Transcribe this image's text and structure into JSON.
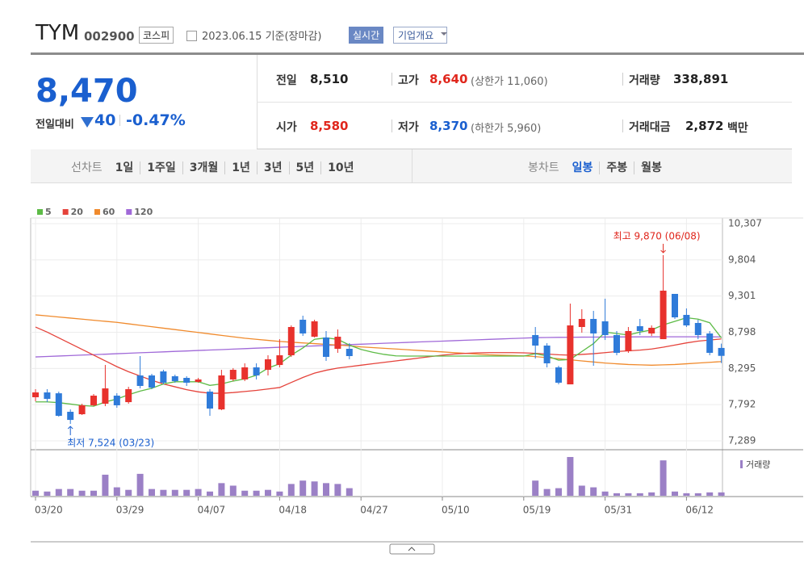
{
  "header": {
    "title": "TYM",
    "code": "002900",
    "market": "코스피",
    "date": "2023.06.15 기준(장마감)",
    "buttons": [
      "실시간",
      "기업개요"
    ]
  },
  "quote": {
    "price": "8,470",
    "change_label": "전일대비",
    "change": "40",
    "change_pct": "-0.47%",
    "info": [
      {
        "label": "전일",
        "value": "8,510"
      },
      {
        "label": "고가",
        "value": "8,640",
        "note": "(상한가 11,060)"
      },
      {
        "label": "거래량",
        "value": "338,891"
      },
      {
        "label": "시가",
        "value": "8,580"
      },
      {
        "label": "저가",
        "value": "8,370",
        "note": "(하한가 5,960)"
      },
      {
        "label": "거래대금",
        "value": "2,872",
        "note": "백만"
      }
    ]
  },
  "tabs": {
    "line": {
      "label": "선차트",
      "items": [
        "1일",
        "1주일",
        "3개월",
        "1년",
        "3년",
        "5년",
        "10년"
      ]
    },
    "candle": {
      "label": "봉차트",
      "items": [
        "일봉",
        "주봉",
        "월봉"
      ]
    }
  },
  "chart_data": {
    "type": "candlestick",
    "categories": [
      "03/20",
      null,
      null,
      null,
      null,
      null,
      null,
      "03/29",
      null,
      null,
      null,
      null,
      null,
      null,
      "04/07",
      null,
      null,
      null,
      null,
      null,
      null,
      "04/18",
      null,
      null,
      null,
      null,
      null,
      null,
      "04/27",
      null,
      null,
      null,
      null,
      null,
      null,
      "05/10",
      null,
      null,
      null,
      null,
      null,
      null,
      "05/19",
      null,
      null,
      null,
      null,
      null,
      null,
      "05/31",
      null,
      null,
      null,
      null,
      null,
      null,
      "06/12",
      null,
      null,
      null
    ],
    "ohlc": {
      "up_color": "#e8322d",
      "down_color": "#2f7bd9",
      "open": [
        7895,
        7962,
        7950,
        7693,
        7659,
        7783,
        7805,
        7917,
        7827,
        8198,
        8198,
        8254,
        8187,
        8164,
        8108,
        7973,
        7726,
        8142,
        8142,
        8310,
        8276,
        8343,
        8478,
        8972,
        8736,
        8725,
        8568,
        8568,
        null,
        null,
        null,
        null,
        null,
        null,
        null,
        null,
        null,
        null,
        null,
        null,
        null,
        null,
        null,
        8759,
        8613,
        8310,
        8074,
        8871,
        8983,
        8950,
        8759,
        8534,
        8882,
        8781,
        8702,
        9331,
        9039,
        8927,
        8781,
        8580
      ],
      "high": [
        8007,
        8007,
        7973,
        7726,
        7805,
        7940,
        8344,
        7951,
        8040,
        8467,
        8220,
        8277,
        8209,
        8187,
        8164,
        8007,
        8276,
        8300,
        8366,
        8366,
        8478,
        8702,
        8893,
        9028,
        8972,
        8815,
        8837,
        8646,
        null,
        null,
        null,
        null,
        null,
        null,
        null,
        null,
        null,
        null,
        null,
        null,
        null,
        null,
        null,
        8871,
        8646,
        8332,
        9196,
        9118,
        9095,
        9264,
        8815,
        8871,
        8983,
        8893,
        9870,
        9331,
        9129,
        8972,
        8815,
        8640
      ],
      "low": [
        7839,
        7828,
        7625,
        7524,
        7648,
        7771,
        7771,
        7749,
        7805,
        8018,
        8007,
        8074,
        8097,
        8052,
        8097,
        7637,
        7715,
        8119,
        8119,
        8142,
        8198,
        8310,
        8455,
        8747,
        8725,
        8400,
        8512,
        8422,
        null,
        null,
        null,
        null,
        null,
        null,
        null,
        null,
        null,
        null,
        null,
        null,
        null,
        null,
        null,
        8433,
        8310,
        8074,
        8074,
        8792,
        8332,
        8691,
        8478,
        8512,
        8759,
        8747,
        8702,
        8983,
        8871,
        8702,
        8478,
        8370
      ],
      "close": [
        7962,
        7872,
        7637,
        7580,
        7783,
        7917,
        8018,
        7783,
        8007,
        8052,
        8029,
        8097,
        8119,
        8097,
        8142,
        7738,
        8198,
        8276,
        8310,
        8198,
        8422,
        8478,
        8871,
        8781,
        8950,
        8456,
        8736,
        8467,
        null,
        null,
        null,
        null,
        null,
        null,
        null,
        null,
        null,
        null,
        null,
        null,
        null,
        null,
        null,
        8613,
        8366,
        8097,
        8893,
        8983,
        8781,
        8759,
        8512,
        8815,
        8815,
        8860,
        9376,
        9005,
        8893,
        8759,
        8512,
        8470
      ]
    },
    "series": [
      {
        "name": "5",
        "color": "#5dbb46",
        "values": [
          7830,
          7830,
          7820,
          7800,
          7780,
          7770,
          7830,
          7870,
          7930,
          7980,
          8020,
          8080,
          8110,
          8110,
          8110,
          8060,
          8080,
          8120,
          8150,
          8200,
          8300,
          8360,
          8480,
          8580,
          8700,
          8720,
          8700,
          8620,
          8560,
          8520,
          8490,
          8470,
          8467,
          8467,
          8467,
          8467,
          8467,
          8467,
          8467,
          8467,
          8467,
          8467,
          8467,
          8500,
          8470,
          8410,
          8420,
          8530,
          8640,
          8800,
          8780,
          8760,
          8800,
          8830,
          8900,
          8950,
          9000,
          8980,
          8930,
          8720
        ]
      },
      {
        "name": "20",
        "color": "#e5433b",
        "values": [
          8870,
          8800,
          8720,
          8640,
          8560,
          8480,
          8400,
          8320,
          8250,
          8190,
          8130,
          8080,
          8040,
          8000,
          7970,
          7950,
          7950,
          7960,
          7975,
          7990,
          8010,
          8030,
          8100,
          8170,
          8230,
          8270,
          8300,
          8320,
          8340,
          8360,
          8380,
          8400,
          8420,
          8440,
          8460,
          8480,
          8495,
          8505,
          8512,
          8515,
          8515,
          8515,
          8512,
          8505,
          8495,
          8485,
          8480,
          8490,
          8500,
          8515,
          8530,
          8540,
          8550,
          8565,
          8590,
          8620,
          8650,
          8675,
          8690,
          8705
        ]
      },
      {
        "name": "60",
        "color": "#f08a2c",
        "values": [
          9040,
          9025,
          9010,
          8995,
          8980,
          8965,
          8950,
          8935,
          8915,
          8895,
          8875,
          8855,
          8835,
          8815,
          8795,
          8775,
          8755,
          8735,
          8715,
          8700,
          8685,
          8670,
          8660,
          8650,
          8640,
          8630,
          8620,
          8610,
          8595,
          8585,
          8575,
          8565,
          8555,
          8545,
          8535,
          8525,
          8515,
          8505,
          8495,
          8485,
          8480,
          8475,
          8470,
          8460,
          8445,
          8430,
          8415,
          8400,
          8385,
          8370,
          8360,
          8350,
          8345,
          8340,
          8345,
          8350,
          8360,
          8370,
          8380,
          8390
        ]
      },
      {
        "name": "120",
        "color": "#a069d8",
        "values": [
          8455,
          8461,
          8468,
          8474,
          8481,
          8487,
          8493,
          8500,
          8506,
          8513,
          8519,
          8525,
          8532,
          8538,
          8545,
          8551,
          8557,
          8564,
          8570,
          8577,
          8583,
          8590,
          8596,
          8602,
          8608,
          8614,
          8620,
          8626,
          8632,
          8638,
          8645,
          8651,
          8657,
          8663,
          8669,
          8675,
          8681,
          8687,
          8693,
          8699,
          8705,
          8711,
          8717,
          8723,
          8725,
          8727,
          8728,
          8730,
          8731,
          8732,
          8733,
          8733,
          8734,
          8734,
          8735,
          8735,
          8735,
          8735,
          8734,
          8733
        ]
      }
    ],
    "volume": {
      "name": "거래량",
      "color": "#9b80c6",
      "values": [
        510000,
        425000,
        680000,
        680000,
        510000,
        510000,
        2125000,
        850000,
        595000,
        2210000,
        680000,
        595000,
        595000,
        595000,
        680000,
        425000,
        1275000,
        1020000,
        510000,
        510000,
        595000,
        425000,
        1190000,
        1530000,
        1445000,
        1275000,
        1190000,
        765000,
        null,
        null,
        null,
        null,
        null,
        null,
        null,
        null,
        null,
        null,
        null,
        null,
        null,
        null,
        null,
        1530000,
        680000,
        765000,
        3910000,
        1020000,
        850000,
        425000,
        255000,
        255000,
        255000,
        340000,
        3570000,
        425000,
        255000,
        255000,
        340000,
        338891
      ]
    },
    "ylim": [
      7289,
      10307
    ],
    "yticks": [
      {
        "value": 10307,
        "label": "10,307"
      },
      {
        "value": 9804,
        "label": "9,804"
      },
      {
        "value": 9301,
        "label": "9,301"
      },
      {
        "value": 8798,
        "label": "8,798"
      },
      {
        "value": 8295,
        "label": "8,295"
      },
      {
        "value": 7792,
        "label": "7,792"
      },
      {
        "value": 7289,
        "label": "7,289"
      }
    ],
    "grid": true,
    "annotations": [
      {
        "text": "최고 9,870 (06/08)",
        "index": 54,
        "value": 9870,
        "color": "#e0261c"
      },
      {
        "text": "최저 7,524 (03/23)",
        "index": 3,
        "value": 7524,
        "color": "#1a5fcf"
      }
    ]
  }
}
